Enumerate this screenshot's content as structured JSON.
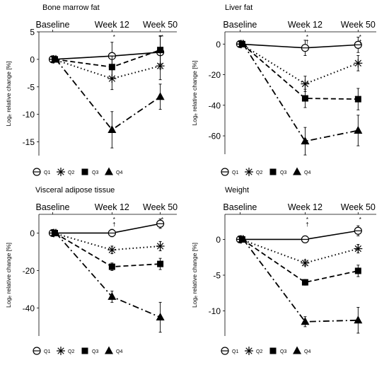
{
  "figure": {
    "legend_entries": [
      "Q1",
      "Q2",
      "Q3",
      "Q4"
    ]
  },
  "chart_data": [
    {
      "type": "line",
      "title": "Bone marrow fat",
      "ylabel": "Logₑ relative change [%]",
      "categories": [
        "Baseline",
        "Week 12",
        "Week 50"
      ],
      "yticks": [
        5,
        0,
        -5,
        -10,
        -15
      ],
      "ylim": [
        -17.5,
        5
      ],
      "grid": false,
      "legend": "bottom",
      "series": [
        {
          "name": "Q1",
          "values": [
            0,
            0.6,
            1.3
          ],
          "errors": [
            0,
            2.5,
            3.0
          ],
          "marker": "circle-slash",
          "line": "solid"
        },
        {
          "name": "Q2",
          "values": [
            0,
            -3.5,
            -1.2
          ],
          "errors": [
            0,
            2.0,
            2.5
          ],
          "marker": "asterisk",
          "line": "dotted"
        },
        {
          "name": "Q3",
          "values": [
            0,
            -1.4,
            1.7
          ],
          "errors": [
            0,
            2.0,
            2.5
          ],
          "marker": "square",
          "line": "dashed"
        },
        {
          "name": "Q4",
          "values": [
            0,
            -12.8,
            -6.8
          ],
          "errors": [
            0,
            3.3,
            2.3
          ],
          "marker": "triangle",
          "line": "dashdot"
        }
      ],
      "annotations": [
        {
          "category": "Week 12",
          "text": "*"
        },
        {
          "category": "Week 50",
          "text": "*"
        }
      ]
    },
    {
      "type": "line",
      "title": "Liver fat",
      "ylabel": "Logₑ relative change [%]",
      "categories": [
        "Baseline",
        "Week 12",
        "Week 50"
      ],
      "yticks": [
        0,
        -20,
        -40,
        -60
      ],
      "ylim": [
        -72,
        8
      ],
      "grid": false,
      "legend": "bottom",
      "series": [
        {
          "name": "Q1",
          "values": [
            0,
            -2.5,
            -0.5
          ],
          "errors": [
            0,
            5,
            5
          ],
          "marker": "circle-slash",
          "line": "solid"
        },
        {
          "name": "Q2",
          "values": [
            0,
            -26,
            -12.5
          ],
          "errors": [
            0,
            5,
            5
          ],
          "marker": "asterisk",
          "line": "dotted"
        },
        {
          "name": "Q3",
          "values": [
            0,
            -35.5,
            -36
          ],
          "errors": [
            0,
            6,
            7
          ],
          "marker": "square",
          "line": "dashed"
        },
        {
          "name": "Q4",
          "values": [
            0,
            -63.5,
            -56.5
          ],
          "errors": [
            0,
            9,
            10
          ],
          "marker": "triangle",
          "line": "dashdot"
        }
      ],
      "annotations": [
        {
          "category": "Week 12",
          "text": "*"
        },
        {
          "category": "Week 12",
          "text": "†"
        },
        {
          "category": "Week 50",
          "text": "*"
        },
        {
          "category": "Week 50",
          "text": "†"
        }
      ]
    },
    {
      "type": "line",
      "title": "Visceral adipose tissue",
      "ylabel": "Logₑ relative change [%]",
      "categories": [
        "Baseline",
        "Week 12",
        "Week 50"
      ],
      "yticks": [
        0,
        -20,
        -40
      ],
      "ylim": [
        -55,
        10
      ],
      "grid": false,
      "legend": "bottom",
      "series": [
        {
          "name": "Q1",
          "values": [
            0,
            0,
            5
          ],
          "errors": [
            0,
            2,
            2.5
          ],
          "marker": "circle-slash",
          "line": "solid"
        },
        {
          "name": "Q2",
          "values": [
            0,
            -9,
            -7
          ],
          "errors": [
            0,
            2,
            2.5
          ],
          "marker": "asterisk",
          "line": "dotted"
        },
        {
          "name": "Q3",
          "values": [
            0,
            -18,
            -16.5
          ],
          "errors": [
            0,
            2,
            3
          ],
          "marker": "square",
          "line": "dashed"
        },
        {
          "name": "Q4",
          "values": [
            0,
            -34,
            -45
          ],
          "errors": [
            0,
            3,
            8
          ],
          "marker": "triangle",
          "line": "dashdot"
        }
      ],
      "annotations": [
        {
          "category": "Week 12",
          "text": "*"
        },
        {
          "category": "Week 12",
          "text": "†"
        },
        {
          "category": "Week 50",
          "text": "*"
        }
      ]
    },
    {
      "type": "line",
      "title": "Weight",
      "ylabel": "Logₑ relative change [%]",
      "categories": [
        "Baseline",
        "Week 12",
        "Week 50"
      ],
      "yticks": [
        0,
        -5,
        -10
      ],
      "ylim": [
        -13.5,
        3.5
      ],
      "grid": false,
      "legend": "bottom",
      "series": [
        {
          "name": "Q1",
          "values": [
            0,
            0,
            1.2
          ],
          "errors": [
            0,
            0.3,
            0.7
          ],
          "marker": "circle-slash",
          "line": "solid"
        },
        {
          "name": "Q2",
          "values": [
            0,
            -3.3,
            -1.3
          ],
          "errors": [
            0,
            0.4,
            0.6
          ],
          "marker": "asterisk",
          "line": "dotted"
        },
        {
          "name": "Q3",
          "values": [
            0,
            -6,
            -4.4
          ],
          "errors": [
            0,
            0.4,
            0.8
          ],
          "marker": "square",
          "line": "dashed"
        },
        {
          "name": "Q4",
          "values": [
            0,
            -11.5,
            -11.3
          ],
          "errors": [
            0,
            0.7,
            1.8
          ],
          "marker": "triangle",
          "line": "dashdot"
        }
      ],
      "annotations": [
        {
          "category": "Week 12",
          "text": "*"
        },
        {
          "category": "Week 12",
          "text": "†"
        },
        {
          "category": "Week 50",
          "text": "*"
        }
      ]
    }
  ]
}
